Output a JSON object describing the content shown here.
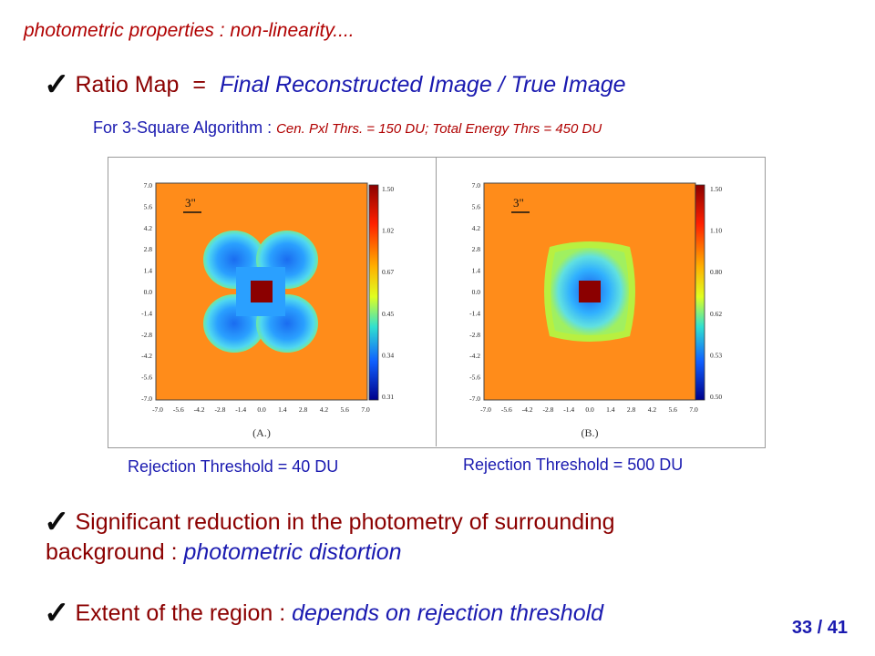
{
  "header": "photometric properties : non-linearity....",
  "ratio_line": {
    "label": "Ratio Map",
    "equals": "=",
    "expression": "Final Reconstructed Image  / True Image"
  },
  "algorithm_line": {
    "prefix": "For 3-Square Algorithm : ",
    "details": "Cen. Pxl Thrs. = 150 DU; Total Energy Thrs = 450 DU"
  },
  "figure": {
    "panels": [
      {
        "label": "(A.)",
        "scale_marker": "3\"",
        "axis_ticks": [
          "-7.0",
          "-5.6",
          "-4.2",
          "-2.8",
          "-1.4",
          "0.0",
          "1.4",
          "2.8",
          "4.2",
          "5.6",
          "7.0"
        ],
        "colorbar_ticks": [
          "1.50",
          "1.02",
          "0.67",
          "0.45",
          "0.34",
          "0.31"
        ]
      },
      {
        "label": "(B.)",
        "scale_marker": "3\"",
        "axis_ticks": [
          "-7.0",
          "-5.6",
          "-4.2",
          "-2.8",
          "-1.4",
          "0.0",
          "1.4",
          "2.8",
          "4.2",
          "5.6",
          "7.0"
        ],
        "colorbar_ticks": [
          "1.50",
          "1.10",
          "0.80",
          "0.62",
          "0.53",
          "0.50"
        ]
      }
    ]
  },
  "rejection_a": "Rejection Threshold = 40 DU",
  "rejection_b": "Rejection Threshold = 500 DU",
  "bullet_1": {
    "text": "Significant reduction in the photometry of surrounding",
    "continuation": "background : ",
    "emphasis": "photometric distortion"
  },
  "bullet_2": {
    "text": "Extent of the region : ",
    "emphasis": "depends on rejection threshold"
  },
  "page_number": "33 / 41",
  "colors": {
    "background_map": "#ff8c1a",
    "low_region": "#2a8cff",
    "center_square": "#8b0000"
  }
}
